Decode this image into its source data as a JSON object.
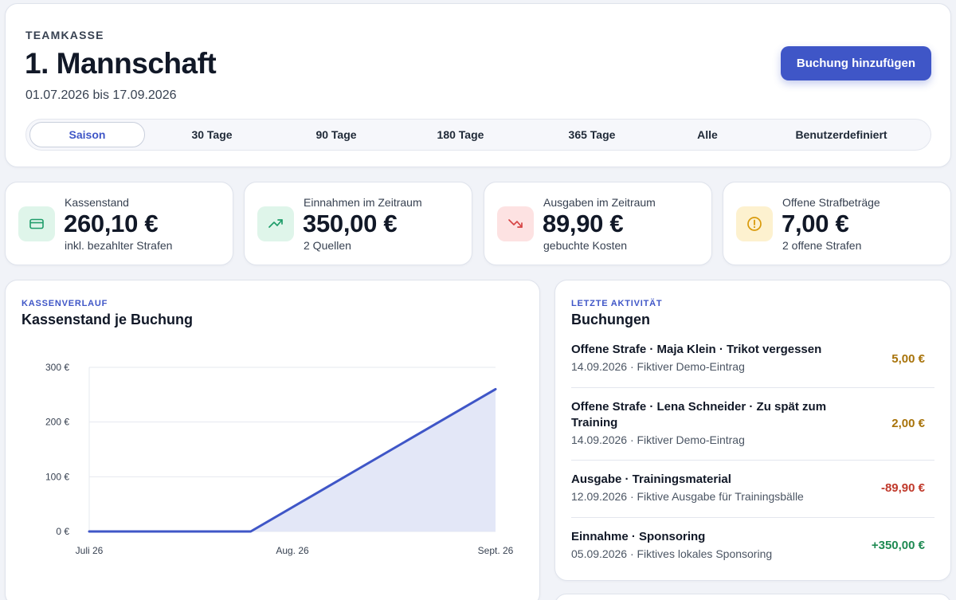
{
  "header": {
    "eyebrow": "TEAMKASSE",
    "title": "1. Mannschaft",
    "date_range": "01.07.2026 bis 17.09.2026",
    "add_button": "Buchung hinzufügen",
    "tabs": [
      {
        "label": "Saison",
        "active": true
      },
      {
        "label": "30 Tage",
        "active": false
      },
      {
        "label": "90 Tage",
        "active": false
      },
      {
        "label": "180 Tage",
        "active": false
      },
      {
        "label": "365 Tage",
        "active": false
      },
      {
        "label": "Alle",
        "active": false
      },
      {
        "label": "Benutzerdefiniert",
        "active": false
      }
    ]
  },
  "kpis": [
    {
      "label": "Kassenstand",
      "value": "260,10 €",
      "sub": "inkl. bezahlter Strafen",
      "icon": "credit-card-icon",
      "icon_color": "#1f9d6a",
      "icon_bg": "#dff5ea"
    },
    {
      "label": "Einnahmen im Zeitraum",
      "value": "350,00 €",
      "sub": "2 Quellen",
      "icon": "trending-up-icon",
      "icon_color": "#1f9d6a",
      "icon_bg": "#dff5ea"
    },
    {
      "label": "Ausgaben im Zeitraum",
      "value": "89,90 €",
      "sub": "gebuchte Kosten",
      "icon": "trending-down-icon",
      "icon_color": "#d64545",
      "icon_bg": "#fde2e2"
    },
    {
      "label": "Offene Strafbeträge",
      "value": "7,00 €",
      "sub": "2 offene Strafen",
      "icon": "alert-circle-icon",
      "icon_color": "#d99a0b",
      "icon_bg": "#fdf1cf"
    }
  ],
  "chart_section": {
    "eyebrow": "KASSENVERLAUF",
    "title": "Kassenstand je Buchung"
  },
  "chart_data": {
    "type": "area",
    "title": "Kassenstand je Buchung",
    "x": [
      "2026-07-01",
      "2026-08-01",
      "2026-09-17"
    ],
    "series": [
      {
        "values": [
          0,
          0,
          260.1
        ]
      }
    ],
    "x_ticks": [
      "Juli 26",
      "Aug. 26",
      "Sept. 26"
    ],
    "y_ticks": [
      "0 €",
      "100 €",
      "200 €",
      "300 €"
    ],
    "ylim": [
      0,
      300
    ],
    "grid": true,
    "line_color": "#3f56c7",
    "fill_color": "#e3e7f7"
  },
  "activity": {
    "eyebrow": "LETZTE AKTIVITÄT",
    "title": "Buchungen",
    "items": [
      {
        "title": "Offene Strafe · Maja Klein · Trikot vergessen",
        "meta": "14.09.2026 · Fiktiver Demo-Eintrag",
        "amount": "5,00 €",
        "color": "#a8730a"
      },
      {
        "title": "Offene Strafe · Lena Schneider · Zu spät zum Training",
        "meta": "14.09.2026 · Fiktiver Demo-Eintrag",
        "amount": "2,00 €",
        "color": "#a8730a"
      },
      {
        "title": "Ausgabe · Trainingsmaterial",
        "meta": "12.09.2026 · Fiktive Ausgabe für Trainingsbälle",
        "amount": "-89,90 €",
        "color": "#c0392b"
      },
      {
        "title": "Einnahme · Sponsoring",
        "meta": "05.09.2026 · Fiktives lokales Sponsoring",
        "amount": "+350,00 €",
        "color": "#1e8a52"
      }
    ]
  }
}
